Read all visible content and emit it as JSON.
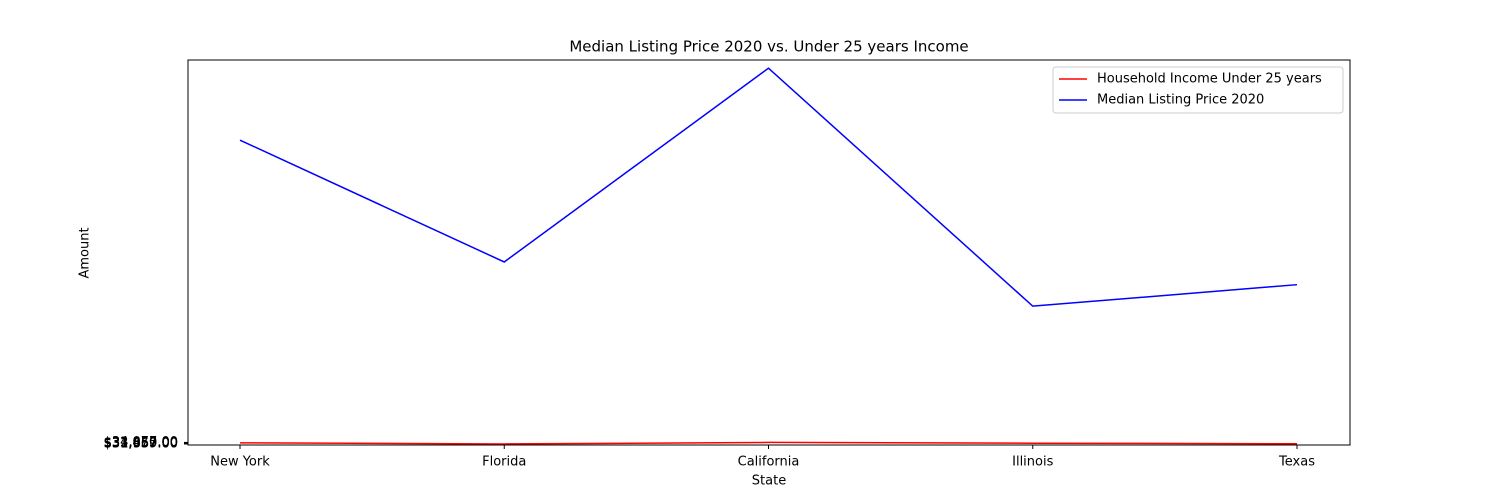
{
  "chart_data": {
    "type": "line",
    "title": "Median Listing Price 2020 vs. Under 25 years Income",
    "x_label": "State",
    "y_label": "Amount",
    "categories": [
      "New York",
      "Florida",
      "California",
      "Illinois",
      "Texas"
    ],
    "series": [
      {
        "name": "Household Income Under 25 years",
        "color": "#ff0000",
        "values": [
          33455,
          31659,
          34077,
          32850,
          31967
        ]
      },
      {
        "name": "Median Listing Price 2020",
        "color": "#0000ff",
        "values": [
          513000,
          320000,
          627000,
          250000,
          284000
        ]
      }
    ],
    "ylim": [
      30000,
      640000
    ],
    "yticks": [
      {
        "value": 31659,
        "label": "$31,659.00"
      },
      {
        "value": 31967,
        "label": "$31,967.00"
      },
      {
        "value": 32850,
        "label": "$32,850.00"
      },
      {
        "value": 33455,
        "label": "$33,455.00"
      },
      {
        "value": 34077,
        "label": "$34,077.00"
      }
    ],
    "legend": "upper right"
  }
}
